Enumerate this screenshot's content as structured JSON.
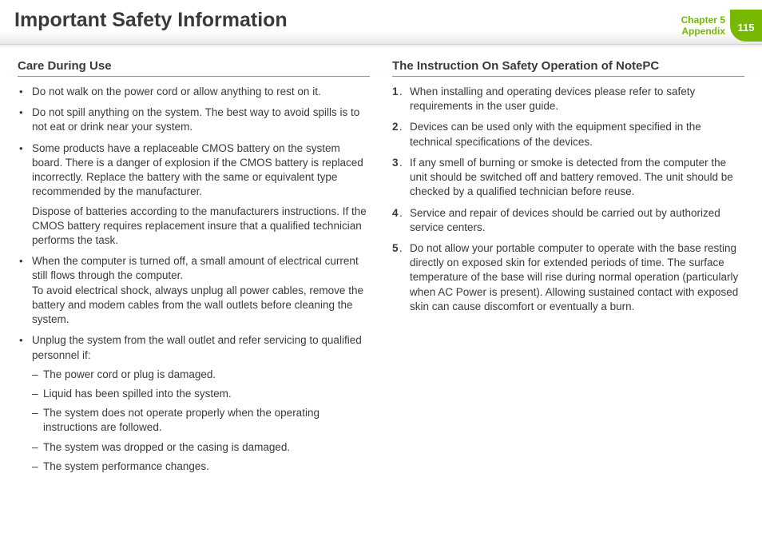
{
  "header": {
    "title": "Important Safety Information",
    "chapter_line1": "Chapter 5",
    "chapter_line2": "Appendix",
    "page_number": "115"
  },
  "colors": {
    "accent": "#76b900",
    "text": "#3a3a3a",
    "background": "#ffffff",
    "header_shadow": "#e8e8e8"
  },
  "left": {
    "title": "Care During Use",
    "bullets": [
      {
        "text": "Do not walk on the power cord or allow anything to rest on it."
      },
      {
        "text": "Do not spill anything on the system. The best way to avoid spills is to not eat or drink near your system."
      },
      {
        "text": "Some products have a replaceable CMOS battery on the system board. There is a danger of explosion if the CMOS battery is replaced incorrectly. Replace the battery with the same or equivalent type recommended by the manufacturer.",
        "extra": "Dispose of batteries according to the manufacturers instructions. If the CMOS battery requires replacement insure that a qualified technician performs the task."
      },
      {
        "text": "When the computer is turned off, a small amount of electrical current still flows through the computer.",
        "extra_inline": "To avoid electrical shock, always unplug all power cables, remove the battery and modem cables from the wall outlets before cleaning the system."
      },
      {
        "text": "Unplug the system from the wall outlet and refer servicing to qualified personnel if:",
        "dashes": [
          "The power cord or plug is damaged.",
          "Liquid has been spilled into the system.",
          "The system does not operate properly when the operating instructions are followed.",
          "The system was dropped or the casing is damaged.",
          "The system performance changes."
        ]
      }
    ]
  },
  "right": {
    "title": "The Instruction On Safety Operation of NotePC",
    "numbers": [
      "When installing and operating devices please refer to safety requirements in the user guide.",
      "Devices can be used only with the equipment specified in the technical specifications of the devices.",
      "If any smell of burning or smoke is detected from the computer the unit should be switched off and battery removed. The unit should be checked by a qualified technician before reuse.",
      "Service and repair of devices should be carried out by authorized service centers.",
      "Do not allow your portable computer to operate with the base resting directly on exposed skin for extended periods of time. The surface temperature of the base will rise during normal operation (particularly when AC Power is present). Allowing sustained contact with exposed skin can cause discomfort or eventually a burn."
    ]
  }
}
